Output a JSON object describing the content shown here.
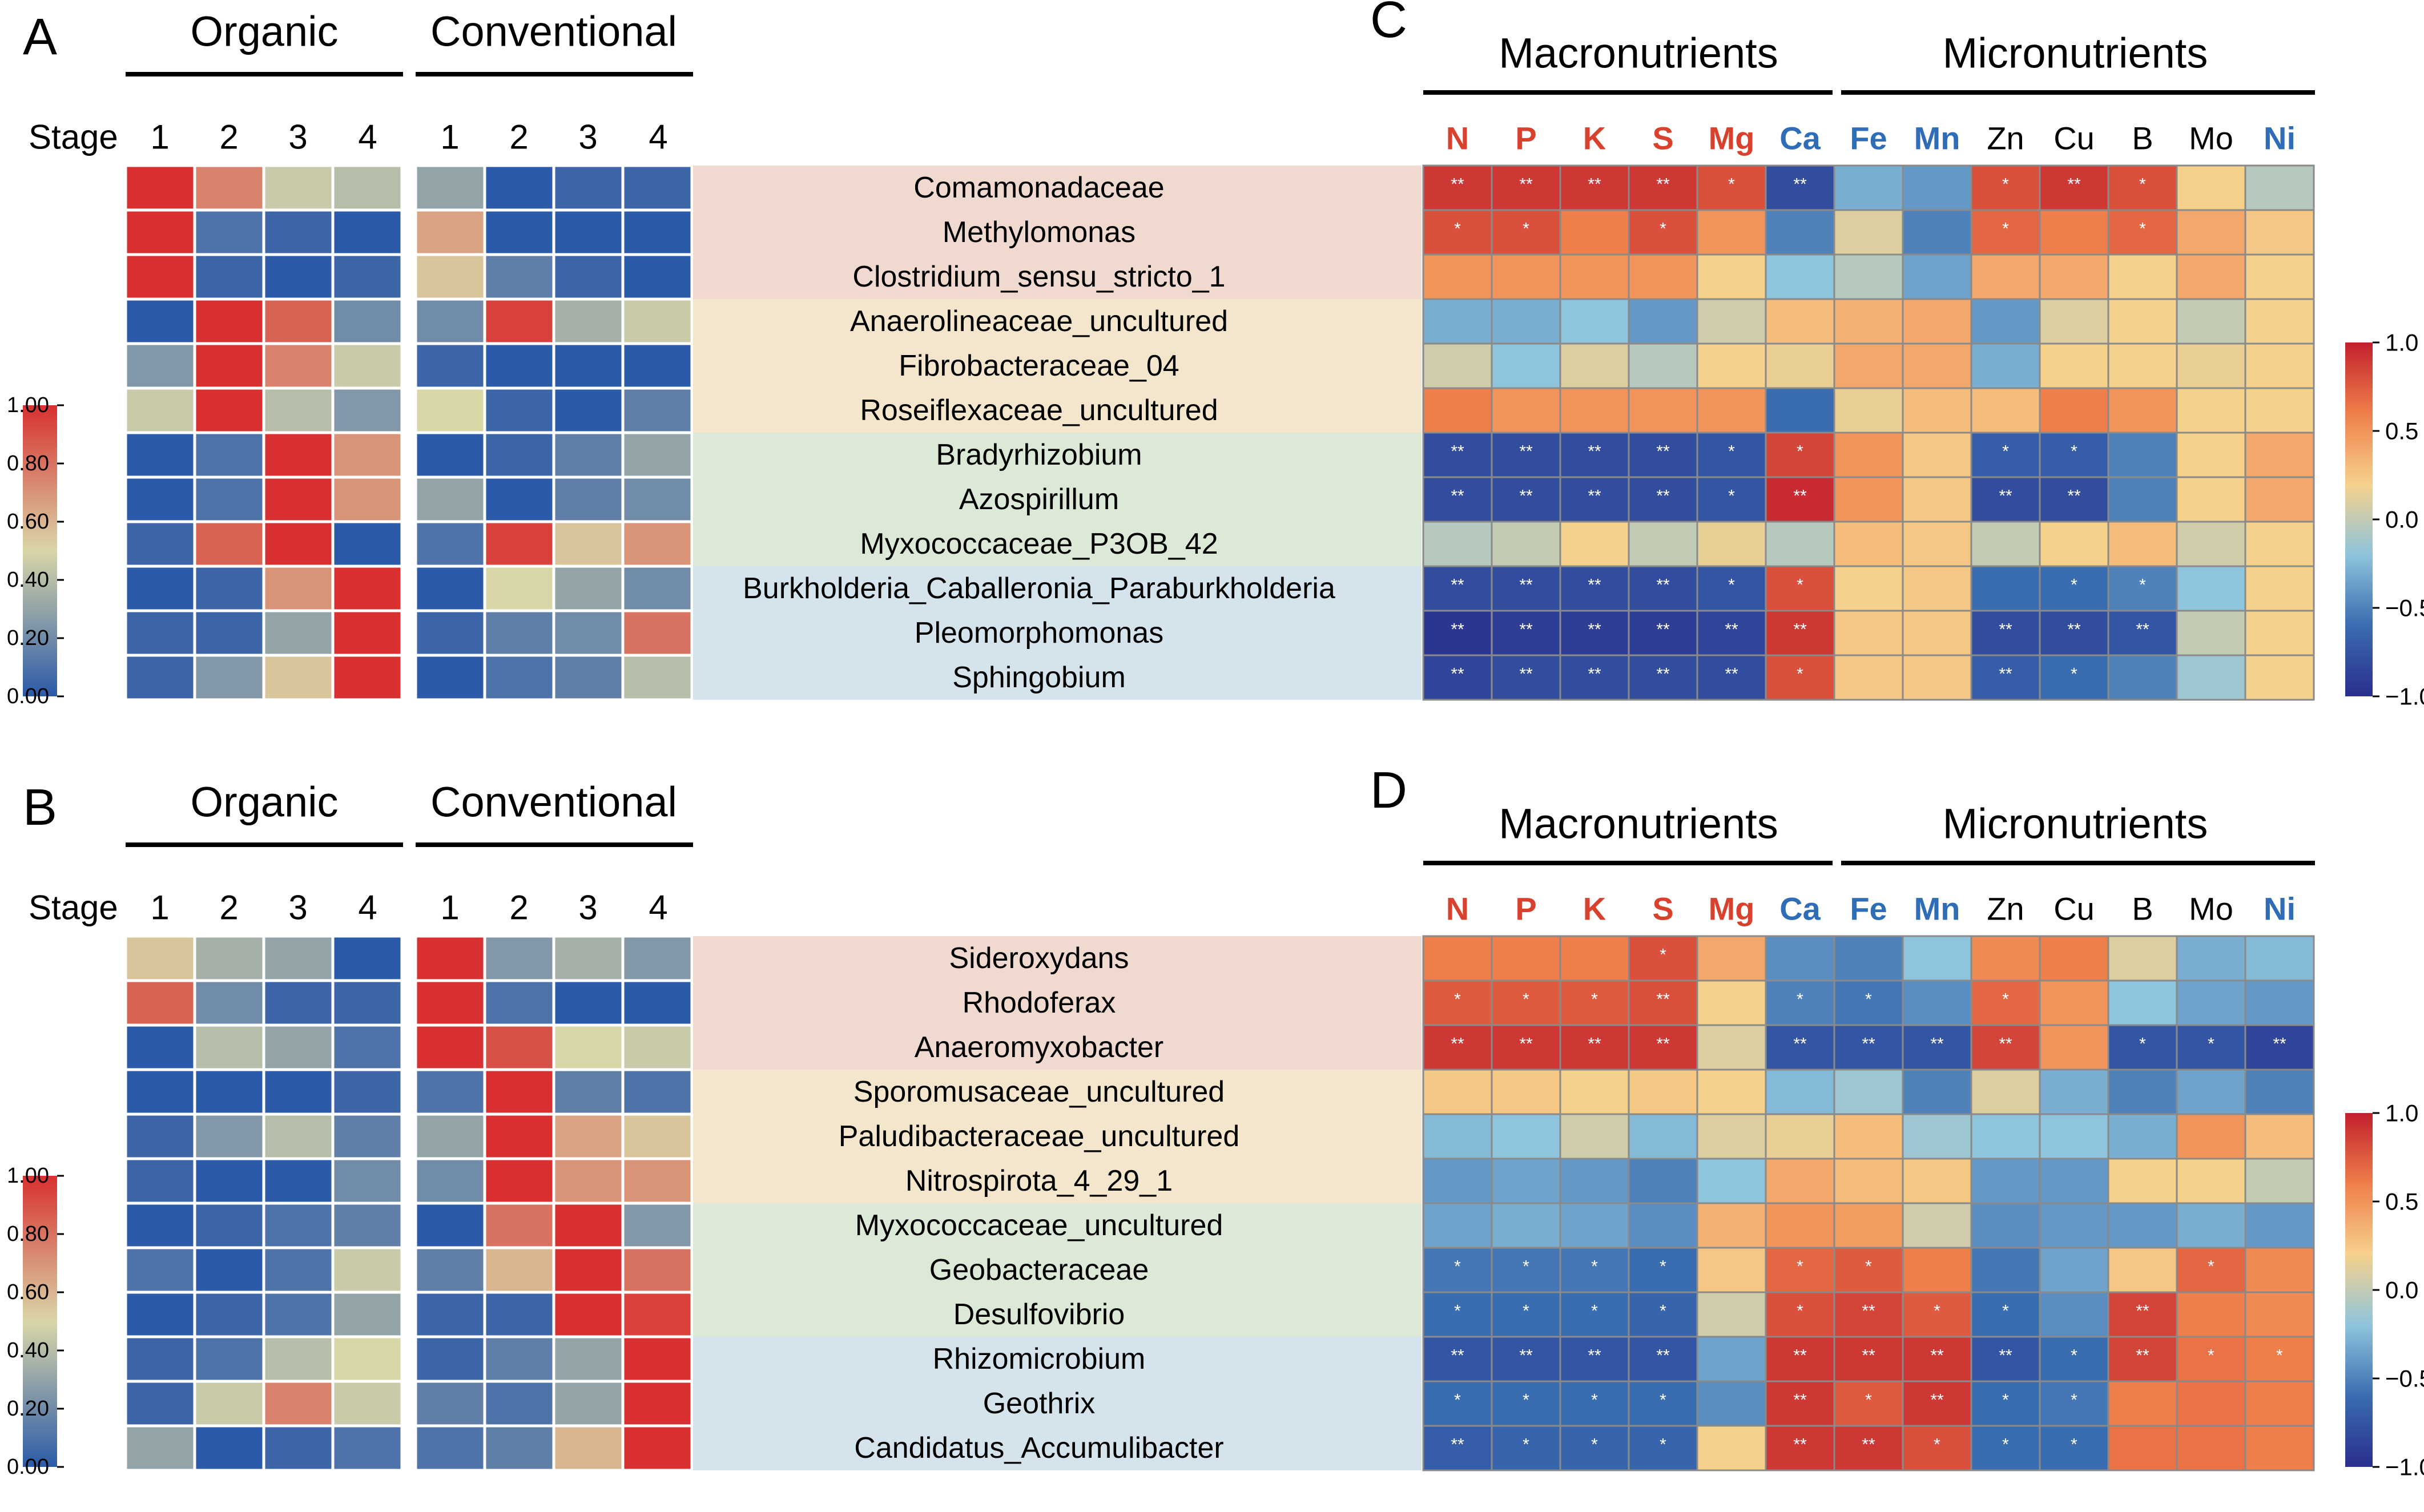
{
  "colors": {
    "stops": [
      "#2b5aa8",
      "#d9d6a8",
      "#d83030"
    ],
    "corr_stops": [
      "#2a2e8c",
      "#3a6cb0",
      "#8ec4dc",
      "#f6d18c",
      "#ef7f4a",
      "#c2202e"
    ],
    "macro_label": "#d8412d",
    "micro_label": "#2f6db6",
    "group_bands": [
      "#f0d9cf",
      "#f3e6cc",
      "#dce9d7",
      "#d5e3ec"
    ]
  },
  "chart_data": [
    {
      "type": "heatmap",
      "panel": "A",
      "groups": [
        "Organic",
        "Conventional"
      ],
      "stage_label": "Stage",
      "stages": [
        "1",
        "2",
        "3",
        "4"
      ],
      "legend": {
        "range": [
          0.0,
          1.0
        ],
        "ticks": [
          "1.00",
          "0.80",
          "0.60",
          "0.40",
          "0.20",
          "0.00"
        ]
      },
      "rows": [
        "Comamonadaceae",
        "Methylomonas",
        "Clostridium_sensu_stricto_1",
        "Anaerolineaceae_uncultured",
        "Fibrobacteraceae_04",
        "Roseiflexaceae_uncultured",
        "Bradyrhizobium",
        "Azospirillum",
        "Myxococcaceae_P3OB_42",
        "Burkholderia_Caballeronia_Paraburkholderia",
        "Pleomorphomonas",
        "Sphingobium"
      ],
      "row_groups": [
        0,
        0,
        0,
        1,
        1,
        1,
        2,
        2,
        2,
        3,
        3,
        3
      ],
      "values": [
        [
          1.0,
          0.75,
          0.45,
          0.4,
          0.3,
          0.0,
          0.05,
          0.05
        ],
        [
          1.0,
          0.1,
          0.05,
          0.0,
          0.65,
          0.0,
          0.0,
          0.0
        ],
        [
          1.0,
          0.05,
          0.0,
          0.05,
          0.55,
          0.15,
          0.05,
          0.0
        ],
        [
          0.0,
          1.0,
          0.85,
          0.2,
          0.2,
          0.95,
          0.35,
          0.45
        ],
        [
          0.25,
          1.0,
          0.75,
          0.45,
          0.05,
          0.0,
          0.0,
          0.0
        ],
        [
          0.45,
          1.0,
          0.4,
          0.25,
          0.5,
          0.05,
          0.0,
          0.15
        ],
        [
          0.0,
          0.1,
          1.0,
          0.7,
          0.0,
          0.05,
          0.15,
          0.3
        ],
        [
          0.0,
          0.1,
          1.0,
          0.7,
          0.3,
          0.0,
          0.15,
          0.2
        ],
        [
          0.05,
          0.85,
          1.0,
          0.0,
          0.1,
          0.95,
          0.55,
          0.7
        ],
        [
          0.0,
          0.05,
          0.7,
          1.0,
          0.0,
          0.5,
          0.3,
          0.2
        ],
        [
          0.05,
          0.05,
          0.3,
          1.0,
          0.05,
          0.15,
          0.2,
          0.8
        ],
        [
          0.05,
          0.25,
          0.55,
          1.0,
          0.0,
          0.1,
          0.15,
          0.4
        ]
      ]
    },
    {
      "type": "heatmap",
      "panel": "B",
      "groups": [
        "Organic",
        "Conventional"
      ],
      "stage_label": "Stage",
      "stages": [
        "1",
        "2",
        "3",
        "4"
      ],
      "legend": {
        "range": [
          0.0,
          1.0
        ],
        "ticks": [
          "1.00",
          "0.80",
          "0.60",
          "0.40",
          "0.20",
          "0.00"
        ]
      },
      "rows": [
        "Sideroxydans",
        "Rhodoferax",
        "Anaeromyxobacter",
        "Sporomusaceae_uncultured",
        "Paludibacteraceae_uncultured",
        "Nitrospirota_4_29_1",
        "Myxococcaceae_uncultured",
        "Geobacteraceae",
        "Desulfovibrio",
        "Rhizomicrobium",
        "Geothrix",
        "Candidatus_Accumulibacter"
      ],
      "row_groups": [
        0,
        0,
        0,
        1,
        1,
        1,
        2,
        2,
        2,
        3,
        3,
        3
      ],
      "values": [
        [
          0.55,
          0.35,
          0.3,
          0.0,
          1.0,
          0.25,
          0.35,
          0.25
        ],
        [
          0.85,
          0.2,
          0.05,
          0.05,
          1.0,
          0.1,
          0.0,
          0.0
        ],
        [
          0.0,
          0.4,
          0.3,
          0.1,
          1.0,
          0.9,
          0.5,
          0.45
        ],
        [
          0.0,
          0.0,
          0.0,
          0.05,
          0.1,
          1.0,
          0.15,
          0.1
        ],
        [
          0.05,
          0.25,
          0.4,
          0.15,
          0.3,
          1.0,
          0.65,
          0.55
        ],
        [
          0.05,
          0.0,
          0.0,
          0.2,
          0.2,
          1.0,
          0.7,
          0.7
        ],
        [
          0.0,
          0.05,
          0.1,
          0.15,
          0.0,
          0.8,
          1.0,
          0.25
        ],
        [
          0.1,
          0.0,
          0.1,
          0.45,
          0.15,
          0.6,
          1.0,
          0.8
        ],
        [
          0.0,
          0.05,
          0.1,
          0.3,
          0.05,
          0.05,
          1.0,
          0.95
        ],
        [
          0.05,
          0.1,
          0.4,
          0.5,
          0.05,
          0.15,
          0.3,
          1.0
        ],
        [
          0.05,
          0.45,
          0.75,
          0.45,
          0.15,
          0.1,
          0.3,
          1.0
        ],
        [
          0.3,
          0.0,
          0.05,
          0.1,
          0.1,
          0.15,
          0.6,
          1.0
        ]
      ]
    },
    {
      "type": "heatmap",
      "panel": "C",
      "groups": [
        "Macronutrients",
        "Micronutrients"
      ],
      "columns": [
        "N",
        "P",
        "K",
        "S",
        "Mg",
        "Ca",
        "Fe",
        "Mn",
        "Zn",
        "Cu",
        "B",
        "Mo",
        "Ni"
      ],
      "column_colors": [
        "macro",
        "macro",
        "macro",
        "macro",
        "macro",
        "micro",
        "micro",
        "micro",
        "plain",
        "plain",
        "plain",
        "plain",
        "micro"
      ],
      "legend": {
        "range": [
          -1.0,
          1.0
        ],
        "ticks": [
          "1.0",
          "0.5",
          "0.0",
          "−0.5",
          "−1.0"
        ]
      },
      "values": [
        [
          0.9,
          0.9,
          0.9,
          0.9,
          0.8,
          -0.8,
          -0.3,
          -0.4,
          0.8,
          0.9,
          0.8,
          0.2,
          -0.05
        ],
        [
          0.8,
          0.8,
          0.6,
          0.8,
          0.5,
          -0.5,
          0.1,
          -0.5,
          0.7,
          0.6,
          0.7,
          0.4,
          0.25
        ],
        [
          0.5,
          0.5,
          0.5,
          0.5,
          0.2,
          -0.2,
          -0.05,
          -0.35,
          0.4,
          0.4,
          0.2,
          0.4,
          0.2
        ],
        [
          -0.3,
          -0.3,
          -0.2,
          -0.4,
          0.05,
          0.3,
          0.35,
          0.4,
          -0.4,
          0.1,
          0.2,
          0.0,
          0.2
        ],
        [
          0.05,
          -0.2,
          0.1,
          -0.05,
          0.2,
          0.15,
          0.4,
          0.4,
          -0.3,
          0.2,
          0.2,
          0.15,
          0.2
        ],
        [
          0.6,
          0.5,
          0.5,
          0.5,
          0.5,
          -0.6,
          0.15,
          0.3,
          0.3,
          0.6,
          0.5,
          0.2,
          0.2
        ],
        [
          -0.8,
          -0.8,
          -0.8,
          -0.8,
          -0.75,
          0.85,
          0.5,
          0.25,
          -0.7,
          -0.7,
          -0.5,
          0.2,
          0.4
        ],
        [
          -0.8,
          -0.8,
          -0.8,
          -0.8,
          -0.75,
          0.95,
          0.5,
          0.25,
          -0.8,
          -0.8,
          -0.5,
          0.2,
          0.4
        ],
        [
          -0.05,
          0.0,
          0.2,
          0.0,
          0.15,
          -0.05,
          0.3,
          0.25,
          0.0,
          0.2,
          0.3,
          0.05,
          0.2
        ],
        [
          -0.8,
          -0.8,
          -0.8,
          -0.8,
          -0.75,
          0.8,
          0.2,
          0.25,
          -0.6,
          -0.6,
          -0.5,
          -0.2,
          0.2
        ],
        [
          -0.95,
          -0.9,
          -0.9,
          -0.9,
          -0.85,
          0.9,
          0.25,
          0.25,
          -0.8,
          -0.8,
          -0.75,
          0.0,
          0.2
        ],
        [
          -0.85,
          -0.8,
          -0.8,
          -0.8,
          -0.8,
          0.8,
          0.25,
          0.25,
          -0.7,
          -0.6,
          -0.5,
          -0.15,
          0.2
        ]
      ],
      "significance": [
        [
          "**",
          "**",
          "**",
          "**",
          "*",
          "**",
          "",
          "",
          "*",
          "**",
          "*",
          "",
          ""
        ],
        [
          "*",
          "*",
          "",
          "*",
          "",
          "",
          "",
          "",
          "*",
          "",
          "*",
          "",
          ""
        ],
        [
          "",
          "",
          "",
          "",
          "",
          "",
          "",
          "",
          "",
          "",
          "",
          "",
          ""
        ],
        [
          "",
          "",
          "",
          "",
          "",
          "",
          "",
          "",
          "",
          "",
          "",
          "",
          ""
        ],
        [
          "",
          "",
          "",
          "",
          "",
          "",
          "",
          "",
          "",
          "",
          "",
          "",
          ""
        ],
        [
          "",
          "",
          "",
          "",
          "",
          "",
          "",
          "",
          "",
          "",
          "",
          "",
          ""
        ],
        [
          "**",
          "**",
          "**",
          "**",
          "*",
          "*",
          "",
          "",
          "*",
          "*",
          "",
          "",
          ""
        ],
        [
          "**",
          "**",
          "**",
          "**",
          "*",
          "**",
          "",
          "",
          "**",
          "**",
          "",
          "",
          ""
        ],
        [
          "",
          "",
          "",
          "",
          "",
          "",
          "",
          "",
          "",
          "",
          "",
          "",
          ""
        ],
        [
          "**",
          "**",
          "**",
          "**",
          "*",
          "*",
          "",
          "",
          "",
          "*",
          "*",
          "",
          ""
        ],
        [
          "**",
          "**",
          "**",
          "**",
          "**",
          "**",
          "",
          "",
          "**",
          "**",
          "**",
          "",
          ""
        ],
        [
          "**",
          "**",
          "**",
          "**",
          "**",
          "*",
          "",
          "",
          "**",
          "*",
          "",
          "",
          ""
        ]
      ]
    },
    {
      "type": "heatmap",
      "panel": "D",
      "groups": [
        "Macronutrients",
        "Micronutrients"
      ],
      "columns": [
        "N",
        "P",
        "K",
        "S",
        "Mg",
        "Ca",
        "Fe",
        "Mn",
        "Zn",
        "Cu",
        "B",
        "Mo",
        "Ni"
      ],
      "column_colors": [
        "macro",
        "macro",
        "macro",
        "macro",
        "macro",
        "micro",
        "micro",
        "micro",
        "plain",
        "plain",
        "plain",
        "plain",
        "micro"
      ],
      "legend": {
        "range": [
          -1.0,
          1.0
        ],
        "ticks": [
          "1.0",
          "0.5",
          "0.0",
          "−0.5",
          "−1.0"
        ]
      },
      "values": [
        [
          0.6,
          0.6,
          0.6,
          0.8,
          0.4,
          -0.45,
          -0.5,
          -0.2,
          0.55,
          0.6,
          0.1,
          -0.3,
          -0.25
        ],
        [
          0.75,
          0.75,
          0.75,
          0.8,
          0.2,
          -0.5,
          -0.55,
          -0.45,
          0.7,
          0.5,
          -0.2,
          -0.35,
          -0.4
        ],
        [
          0.9,
          0.9,
          0.9,
          0.9,
          0.1,
          -0.75,
          -0.75,
          -0.75,
          0.85,
          0.5,
          -0.75,
          -0.75,
          -0.85
        ],
        [
          0.25,
          0.25,
          0.2,
          0.25,
          0.2,
          -0.25,
          -0.15,
          -0.5,
          0.1,
          -0.3,
          -0.5,
          -0.35,
          -0.5
        ],
        [
          -0.25,
          -0.2,
          0.05,
          -0.25,
          0.1,
          0.15,
          0.3,
          -0.15,
          -0.2,
          -0.2,
          -0.3,
          0.5,
          0.3
        ],
        [
          -0.4,
          -0.35,
          -0.4,
          -0.5,
          -0.2,
          0.4,
          0.3,
          0.25,
          -0.4,
          -0.4,
          0.2,
          0.2,
          0.0
        ],
        [
          -0.35,
          -0.3,
          -0.35,
          -0.45,
          0.35,
          0.5,
          0.45,
          0.05,
          -0.45,
          -0.4,
          -0.4,
          -0.3,
          -0.4
        ],
        [
          -0.55,
          -0.55,
          -0.55,
          -0.6,
          0.25,
          0.7,
          0.75,
          0.6,
          -0.55,
          -0.35,
          0.25,
          0.7,
          0.55
        ],
        [
          -0.6,
          -0.6,
          -0.6,
          -0.65,
          0.05,
          0.8,
          0.85,
          0.75,
          -0.6,
          -0.45,
          0.85,
          0.6,
          0.55
        ],
        [
          -0.75,
          -0.75,
          -0.75,
          -0.75,
          -0.35,
          0.9,
          0.9,
          0.9,
          -0.75,
          -0.6,
          0.85,
          0.65,
          0.6
        ],
        [
          -0.6,
          -0.6,
          -0.6,
          -0.6,
          -0.45,
          0.9,
          0.75,
          0.9,
          -0.6,
          -0.55,
          0.6,
          0.65,
          0.6
        ],
        [
          -0.7,
          -0.65,
          -0.65,
          -0.65,
          0.2,
          0.9,
          0.9,
          0.8,
          -0.6,
          -0.6,
          0.65,
          0.65,
          0.6
        ]
      ],
      "significance": [
        [
          "",
          "",
          "",
          "*",
          "",
          "",
          "",
          "",
          "",
          "",
          "",
          "",
          ""
        ],
        [
          "*",
          "*",
          "*",
          "**",
          "",
          "*",
          "*",
          "",
          "*",
          "",
          "",
          "",
          ""
        ],
        [
          "**",
          "**",
          "**",
          "**",
          "",
          "**",
          "**",
          "**",
          "**",
          "",
          "*",
          "*",
          "**"
        ],
        [
          "",
          "",
          "",
          "",
          "",
          "",
          "",
          "",
          "",
          "",
          "",
          "",
          ""
        ],
        [
          "",
          "",
          "",
          "",
          "",
          "",
          "",
          "",
          "",
          "",
          "",
          "",
          ""
        ],
        [
          "",
          "",
          "",
          "",
          "",
          "",
          "",
          "",
          "",
          "",
          "",
          "",
          ""
        ],
        [
          "",
          "",
          "",
          "",
          "",
          "",
          "",
          "",
          "",
          "",
          "",
          "",
          ""
        ],
        [
          "*",
          "*",
          "*",
          "*",
          "",
          "*",
          "*",
          "",
          "",
          "",
          "",
          "*",
          ""
        ],
        [
          "*",
          "*",
          "*",
          "*",
          "",
          "*",
          "**",
          "*",
          "*",
          "",
          "**",
          "",
          ""
        ],
        [
          "**",
          "**",
          "**",
          "**",
          "",
          "**",
          "**",
          "**",
          "**",
          "*",
          "**",
          "*",
          "*"
        ],
        [
          "*",
          "*",
          "*",
          "*",
          "",
          "**",
          "*",
          "**",
          "*",
          "*",
          "",
          "",
          ""
        ],
        [
          "**",
          "*",
          "*",
          "*",
          "",
          "**",
          "**",
          "*",
          "*",
          "*",
          "",
          "",
          ""
        ]
      ]
    }
  ]
}
